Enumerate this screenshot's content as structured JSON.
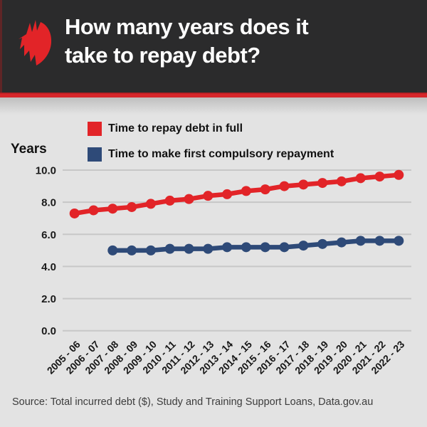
{
  "header": {
    "title_line1": "How many years does it",
    "title_line2": "take to repay debt?"
  },
  "legend": {
    "items": [
      {
        "label": "Time to repay debt in full",
        "color": "#e22428"
      },
      {
        "label": "Time to make first compulsory repayment",
        "color": "#2e4a78"
      }
    ]
  },
  "axis": {
    "y_label": "Years"
  },
  "footer": {
    "source": "Source: Total incurred debt ($), Study and Training Support Loans, Data.gov.au"
  },
  "colors": {
    "background": "#e3e3e3",
    "banner": "#2b2b2c",
    "accent_red": "#e22428",
    "stripe_red": "#d8262b",
    "navy": "#2e4a78",
    "gridline": "#c7c7c7"
  },
  "chart_data": {
    "type": "line",
    "title": "How many years does it take to repay debt?",
    "ylabel": "Years",
    "xlabel": "",
    "grid": true,
    "legend_position": "top",
    "ylim": [
      0,
      10.6
    ],
    "yticks": [
      0.0,
      2.0,
      4.0,
      6.0,
      8.0,
      10.0
    ],
    "ytick_format": "one_decimal",
    "categories": [
      "2005 - 06",
      "2006 - 07",
      "2007 - 08",
      "2008 - 09",
      "2009 - 10",
      "2010 - 11",
      "2011 - 12",
      "2012 - 13",
      "2013 - 14",
      "2014 - 15",
      "2015 - 16",
      "2016 - 17",
      "2017 - 18",
      "2018 - 19",
      "2019 - 20",
      "2020 - 21",
      "2021 - 22",
      "2022 - 23"
    ],
    "series": [
      {
        "name": "Time to repay debt in full",
        "color": "#e22428",
        "start_index": 0,
        "values": [
          7.3,
          7.5,
          7.6,
          7.7,
          7.9,
          8.1,
          8.2,
          8.4,
          8.5,
          8.7,
          8.8,
          9.0,
          9.1,
          9.2,
          9.3,
          9.5,
          9.6,
          9.7
        ]
      },
      {
        "name": "Time to make first compulsory repayment",
        "color": "#2e4a78",
        "start_index": 2,
        "values": [
          5.0,
          5.0,
          5.0,
          5.1,
          5.1,
          5.1,
          5.2,
          5.2,
          5.2,
          5.2,
          5.3,
          5.4,
          5.5,
          5.6,
          5.6,
          5.6
        ]
      }
    ]
  }
}
